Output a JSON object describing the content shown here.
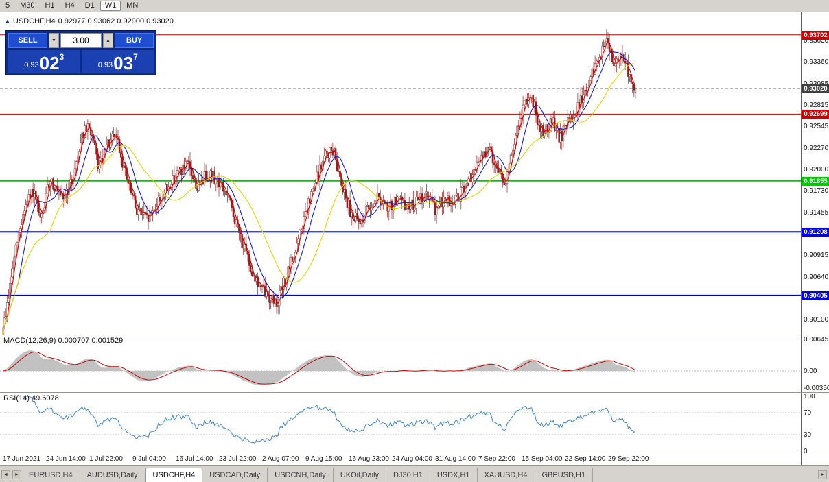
{
  "toolbar": {
    "timeframes": [
      {
        "label": "5",
        "active": false
      },
      {
        "label": "M30",
        "active": false
      },
      {
        "label": "H1",
        "active": false
      },
      {
        "label": "H4",
        "active": false
      },
      {
        "label": "D1",
        "active": false
      },
      {
        "label": "W1",
        "active": true
      },
      {
        "label": "MN",
        "active": false
      }
    ]
  },
  "chart_header": {
    "symbol": "USDCHF,H4",
    "ohlc": "0.92977 0.93062 0.92900 0.93020"
  },
  "trade_panel": {
    "sell_label": "SELL",
    "buy_label": "BUY",
    "volume": "3.00",
    "sell_price": {
      "prefix": "0.93",
      "big": "02",
      "sup": "3"
    },
    "buy_price": {
      "prefix": "0.93",
      "big": "03",
      "sup": "7"
    }
  },
  "indicators": {
    "macd_label": "MACD(12,26,9) 0.000707 0.001529",
    "macd_axis": [
      "0.006451",
      "0.00",
      "-0.00350"
    ],
    "rsi_label": "RSI(14) 49.6078",
    "rsi_axis": [
      "100",
      "70",
      "30",
      "0"
    ]
  },
  "icons": {
    "marker_up": "▲",
    "triangle_down": "▼",
    "triangle_up": "▲",
    "scroll_left": "◄",
    "scroll_right": "►"
  },
  "tab_bar": {
    "tabs": [
      "EURUSD,H4",
      "AUDUSD,Daily",
      "USDCHF,H4",
      "USDCAD,Daily",
      "USDCNH,Daily",
      "UKOil,Daily",
      "DJ30,H1",
      "USDX,H1",
      "XAUUSD,H4",
      "GBPUSD,H1"
    ],
    "active": "USDCHF,H4"
  },
  "chart_data": {
    "type": "candlestick",
    "title": "USDCHF,H4",
    "symbol": "USDCHF",
    "timeframe": "H4",
    "current_ohlc": {
      "open": 0.92977,
      "high": 0.93062,
      "low": 0.929,
      "close": 0.9302
    },
    "bars": 440,
    "y_domain": [
      0.8991,
      0.93986
    ],
    "y_ticks": [
      0.9363,
      0.9336,
      0.93085,
      0.92815,
      0.92545,
      0.9227,
      0.92,
      0.9173,
      0.91455,
      0.91185,
      0.90915,
      0.9064,
      0.9037,
      0.901
    ],
    "h_lines": [
      {
        "price": 0.93702,
        "color": "#c80000",
        "width": 1,
        "label": "0.93702"
      },
      {
        "price": 0.92699,
        "color": "#c80000",
        "width": 1,
        "label": "0.92699"
      },
      {
        "price": 0.91855,
        "color": "#00c800",
        "width": 2,
        "label": "0.91855"
      },
      {
        "price": 0.91208,
        "color": "#0000dc",
        "width": 2,
        "label": "0.91208"
      },
      {
        "price": 0.90405,
        "color": "#0000dc",
        "width": 2,
        "label": "0.90405"
      }
    ],
    "current_price": {
      "value": 0.9302,
      "label": "0.93020",
      "color": "#3f3f3f"
    },
    "candle_color": "#8b2323",
    "candle_up_fill": "#ffffff",
    "moving_averages": [
      {
        "period": 4,
        "color": "#dd0000"
      },
      {
        "period": 12,
        "color": "#1a1acc"
      },
      {
        "period": 34,
        "color": "#e3d400"
      }
    ],
    "macd": {
      "fast": 12,
      "slow": 26,
      "signal": 9,
      "value": 0.000707,
      "signal_value": 0.001529,
      "domain": [
        -0.0035,
        0.006451
      ],
      "histogram_color": "#c2c2c2",
      "signal_color": "#cc0000"
    },
    "rsi": {
      "period": 14,
      "value": 49.6078,
      "domain": [
        0,
        100
      ],
      "levels": [
        70,
        30
      ],
      "color": "#3f87c8"
    },
    "x_labels": [
      "17 Jun 2021",
      "24 Jun 14:00",
      "1 Jul 22:00",
      "9 Jul 04:00",
      "16 Jul 14:00",
      "23 Jul 22:00",
      "2 Aug 07:00",
      "9 Aug 15:00",
      "16 Aug 23:00",
      "24 Aug 04:00",
      "31 Aug 14:00",
      "7 Sep 22:00",
      "15 Sep 04:00",
      "22 Sep 14:00",
      "29 Sep 22:00"
    ],
    "price_path": [
      [
        0.0,
        0.8995
      ],
      [
        0.01,
        0.9045
      ],
      [
        0.022,
        0.9105
      ],
      [
        0.034,
        0.915
      ],
      [
        0.048,
        0.9172
      ],
      [
        0.06,
        0.9132
      ],
      [
        0.075,
        0.919
      ],
      [
        0.092,
        0.916
      ],
      [
        0.11,
        0.9185
      ],
      [
        0.125,
        0.9245
      ],
      [
        0.138,
        0.9252
      ],
      [
        0.152,
        0.92
      ],
      [
        0.165,
        0.923
      ],
      [
        0.18,
        0.9242
      ],
      [
        0.195,
        0.919
      ],
      [
        0.21,
        0.9152
      ],
      [
        0.228,
        0.9136
      ],
      [
        0.245,
        0.9158
      ],
      [
        0.262,
        0.9178
      ],
      [
        0.278,
        0.9198
      ],
      [
        0.293,
        0.9204
      ],
      [
        0.308,
        0.9176
      ],
      [
        0.323,
        0.9196
      ],
      [
        0.34,
        0.9186
      ],
      [
        0.355,
        0.9166
      ],
      [
        0.372,
        0.9124
      ],
      [
        0.388,
        0.9084
      ],
      [
        0.403,
        0.9055
      ],
      [
        0.418,
        0.904
      ],
      [
        0.433,
        0.9032
      ],
      [
        0.448,
        0.9062
      ],
      [
        0.463,
        0.9098
      ],
      [
        0.478,
        0.9142
      ],
      [
        0.495,
        0.9185
      ],
      [
        0.51,
        0.9218
      ],
      [
        0.522,
        0.9224
      ],
      [
        0.535,
        0.9186
      ],
      [
        0.548,
        0.915
      ],
      [
        0.563,
        0.913
      ],
      [
        0.578,
        0.9152
      ],
      [
        0.593,
        0.9166
      ],
      [
        0.608,
        0.9148
      ],
      [
        0.623,
        0.9162
      ],
      [
        0.638,
        0.9152
      ],
      [
        0.653,
        0.9158
      ],
      [
        0.668,
        0.9168
      ],
      [
        0.683,
        0.915
      ],
      [
        0.698,
        0.9162
      ],
      [
        0.713,
        0.9158
      ],
      [
        0.728,
        0.9172
      ],
      [
        0.742,
        0.9192
      ],
      [
        0.755,
        0.9212
      ],
      [
        0.768,
        0.9226
      ],
      [
        0.78,
        0.9205
      ],
      [
        0.795,
        0.9182
      ],
      [
        0.81,
        0.9238
      ],
      [
        0.825,
        0.9285
      ],
      [
        0.835,
        0.9295
      ],
      [
        0.845,
        0.9262
      ],
      [
        0.857,
        0.9246
      ],
      [
        0.868,
        0.9262
      ],
      [
        0.88,
        0.9238
      ],
      [
        0.892,
        0.9258
      ],
      [
        0.904,
        0.9272
      ],
      [
        0.916,
        0.929
      ],
      [
        0.928,
        0.9312
      ],
      [
        0.942,
        0.9342
      ],
      [
        0.956,
        0.9362
      ],
      [
        0.966,
        0.9335
      ],
      [
        0.977,
        0.935
      ],
      [
        0.988,
        0.9324
      ],
      [
        1.0,
        0.9302
      ]
    ]
  }
}
